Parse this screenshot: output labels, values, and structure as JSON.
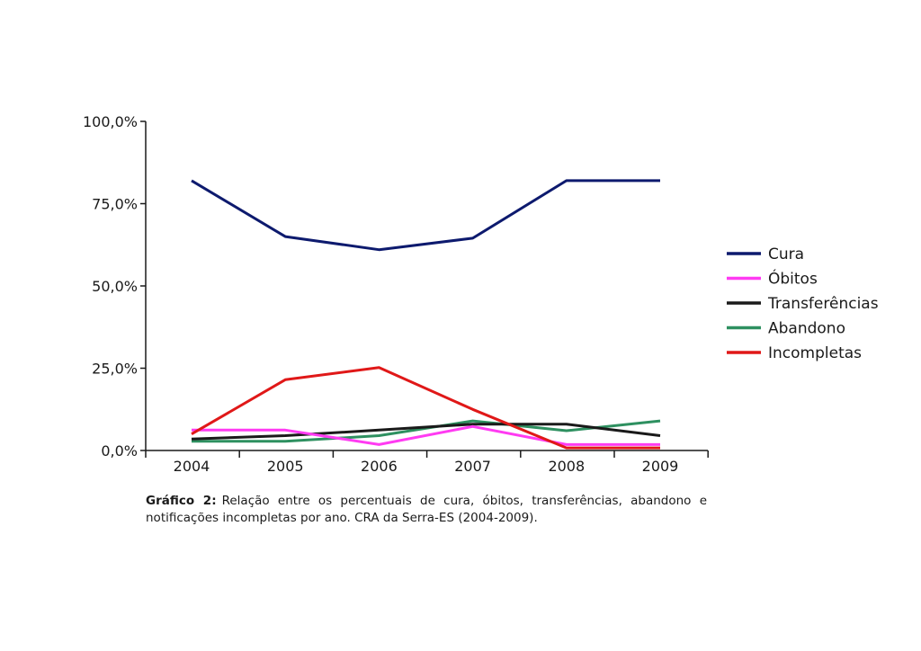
{
  "chart_data": {
    "type": "line",
    "title": "",
    "xlabel": "",
    "ylabel": "",
    "categories": [
      "2004",
      "2005",
      "2006",
      "2007",
      "2008",
      "2009"
    ],
    "y_ticks": [
      {
        "value": 0,
        "label": "0,0%"
      },
      {
        "value": 25,
        "label": "25,0%"
      },
      {
        "value": 50,
        "label": "50,0%"
      },
      {
        "value": 75,
        "label": "75,0%"
      },
      {
        "value": 100,
        "label": "100,0%"
      }
    ],
    "ylim": [
      0,
      100
    ],
    "grid": false,
    "legend_position": "right",
    "series": [
      {
        "name": "Cura",
        "color": "#0d1a6e",
        "values": [
          82,
          65,
          61,
          64.5,
          82,
          82
        ]
      },
      {
        "name": "Óbitos",
        "color": "#ff3bf2",
        "values": [
          6.2,
          6.2,
          1.8,
          7.3,
          1.8,
          1.8
        ]
      },
      {
        "name": "Transferências",
        "color": "#1a1a1a",
        "values": [
          3.5,
          4.5,
          6.2,
          8.0,
          8.0,
          4.5
        ]
      },
      {
        "name": "Abandono",
        "color": "#2e9060",
        "values": [
          2.8,
          2.8,
          4.5,
          9.0,
          6.0,
          9.0
        ]
      },
      {
        "name": "Incompletas",
        "color": "#e01818",
        "values": [
          5.0,
          21.5,
          25.2,
          12.5,
          0.8,
          0.8
        ]
      }
    ]
  },
  "caption": {
    "title": "Gráfico 2:",
    "text": "Relação entre os percentuais de cura, óbitos, transferências, abandono e notificações incompletas por ano. CRA da Serra-ES (2004-2009)."
  }
}
